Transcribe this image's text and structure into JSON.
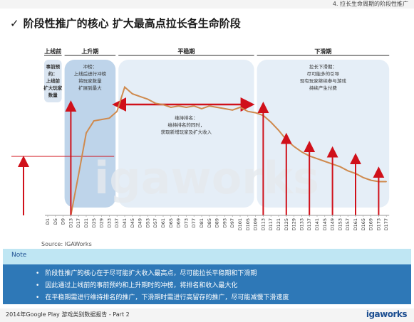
{
  "header": {
    "section_label": "4. 拉长生命周期的阶段性推广"
  },
  "title": {
    "check": "✓",
    "text": "阶段性推广的核心 扩大最高点拉长各生命阶段"
  },
  "watermark": "igaworks",
  "source": "Source: IGAWorks",
  "note": {
    "label": "Note",
    "bullets": [
      "阶段性推广的核心在于尽可能扩大收入最高点，尽可能拉长平稳期和下滑期",
      "因此通过上线前的事前预约和上升期时的冲榜，将排名和收入最大化",
      "在平稳期需进行维持排名的推广，下滑期时需进行高留存的推广，尽可能减慢下滑速度"
    ]
  },
  "footer": {
    "text": "2014年Google Play 游戏类别数据报告 - Part 2",
    "brand": "igaworks"
  },
  "colors": {
    "curve": "#cf8a4e",
    "arrow": "#d0101a",
    "phase_fill": "#bcd3ea",
    "note_body": "#2e78b7",
    "note_head": "#bfe6f3"
  },
  "chart_data": {
    "type": "line",
    "title": "",
    "xlabel": "",
    "ylabel": "",
    "x": [
      "D1",
      "D5",
      "D9",
      "D13",
      "D17",
      "D21",
      "D25",
      "D29",
      "D33",
      "D37",
      "D41",
      "D45",
      "D49",
      "D53",
      "D57",
      "D61",
      "D65",
      "D69",
      "D73",
      "D77",
      "D81",
      "D85",
      "D89",
      "D93",
      "D97",
      "D101",
      "D105",
      "D109",
      "D113",
      "D117",
      "D121",
      "D125",
      "D129",
      "D133",
      "D137",
      "D141",
      "D145",
      "D149",
      "D153",
      "D157",
      "D161",
      "D165",
      "D169",
      "D173",
      "D177"
    ],
    "series": [
      {
        "values": [
          0,
          0,
          0,
          0,
          30,
          61,
          70,
          71,
          72,
          77,
          95,
          90,
          88,
          86,
          83,
          82,
          80,
          81,
          80,
          81,
          79,
          81,
          80,
          79,
          78,
          80,
          77,
          76,
          74,
          69,
          63,
          56,
          51,
          47,
          44,
          42,
          40,
          38,
          36,
          33,
          31,
          28,
          26,
          25,
          25
        ]
      }
    ],
    "ylim": [
      0,
      100
    ],
    "phases": [
      {
        "name": "上线前",
        "start": "D1",
        "end": "D9",
        "text": [
          "事前预",
          "约：",
          "上线前",
          "扩大玩家",
          "数量"
        ]
      },
      {
        "name": "上升期",
        "start": "D9",
        "end": "D37",
        "text": [
          "冲榜：",
          "上线后进行冲榜",
          "将玩家数量",
          "扩展到最大"
        ]
      },
      {
        "name": "平稳期",
        "start": "D37",
        "end": "D109",
        "text": [
          "维持排名：",
          "维持排名的同时，",
          "获取新增玩家及扩大收入"
        ]
      },
      {
        "name": "下滑期",
        "start": "D109",
        "end": "D177",
        "text": [
          "拉长下滑期：",
          "尽可能多的引导",
          "现有玩家继续参与游戏",
          "持续产生付费"
        ]
      }
    ],
    "arrows": [
      {
        "x": "D1",
        "to": 40
      },
      {
        "x": "D13",
        "to": 81
      },
      {
        "x": "D113",
        "to": 80
      },
      {
        "x": "D125",
        "to": 57
      },
      {
        "x": "D137",
        "to": 51
      },
      {
        "x": "D149",
        "to": 47
      },
      {
        "x": "D161",
        "to": 42
      },
      {
        "x": "D173",
        "to": 32
      }
    ]
  }
}
